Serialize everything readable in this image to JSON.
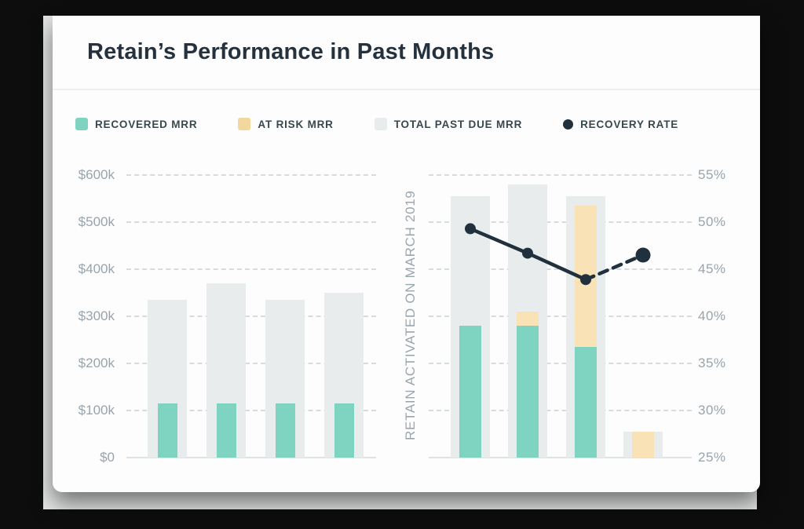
{
  "title": "Retain’s Performance in Past Months",
  "legend": [
    {
      "label": "RECOVERED MRR",
      "color": "#7fd3c1",
      "shape": "square"
    },
    {
      "label": "AT RISK MRR",
      "color": "#f3d89e",
      "shape": "square"
    },
    {
      "label": "TOTAL PAST DUE MRR",
      "color": "#e8eced",
      "shape": "square"
    },
    {
      "label": "RECOVERY RATE",
      "color": "#20303c",
      "shape": "dot"
    }
  ],
  "chart_data": {
    "type": "bar",
    "title": "Retain’s Performance in Past Months",
    "axis_left_ticks": [
      "$600k",
      "$500k",
      "$400k",
      "$300k",
      "$200k",
      "$100k",
      "$0"
    ],
    "axis_right_ticks": [
      "55%",
      "50%",
      "45%",
      "40%",
      "35%",
      "30%",
      "25%"
    ],
    "axis_left_range_k": [
      0,
      600
    ],
    "axis_right_range_pct": [
      25,
      55
    ],
    "gridlines": "dashed-horizontal",
    "legend_entries": [
      "RECOVERED MRR",
      "AT RISK MRR",
      "TOTAL PAST DUE MRR",
      "RECOVERY RATE"
    ],
    "annotation": "RETAIN ACTIVATED ON MARCH 2019",
    "bars_before_activation": [
      {
        "total_past_due_k": 335,
        "recovered_k": 115,
        "at_risk_k": 0
      },
      {
        "total_past_due_k": 370,
        "recovered_k": 115,
        "at_risk_k": 0
      },
      {
        "total_past_due_k": 335,
        "recovered_k": 115,
        "at_risk_k": 0
      },
      {
        "total_past_due_k": 350,
        "recovered_k": 115,
        "at_risk_k": 0
      }
    ],
    "bars_after_activation": [
      {
        "total_past_due_k": 555,
        "recovered_k": 280,
        "at_risk_k": 0
      },
      {
        "total_past_due_k": 580,
        "recovered_k": 280,
        "at_risk_k": 30
      },
      {
        "total_past_due_k": 555,
        "recovered_k": 235,
        "at_risk_k": 300
      },
      {
        "total_past_due_k": 55,
        "recovered_k": 0,
        "at_risk_k": 55
      }
    ],
    "recovery_rate_line": {
      "points_pct": [
        49.3,
        46.7,
        43.9,
        46.5
      ],
      "last_point_projected_dashed": true
    },
    "colors": {
      "recovered": "#7fd3c1",
      "at_risk": "#f8e2b6",
      "total_past_due": "#e8eced",
      "recovery_rate": "#20303c"
    }
  }
}
